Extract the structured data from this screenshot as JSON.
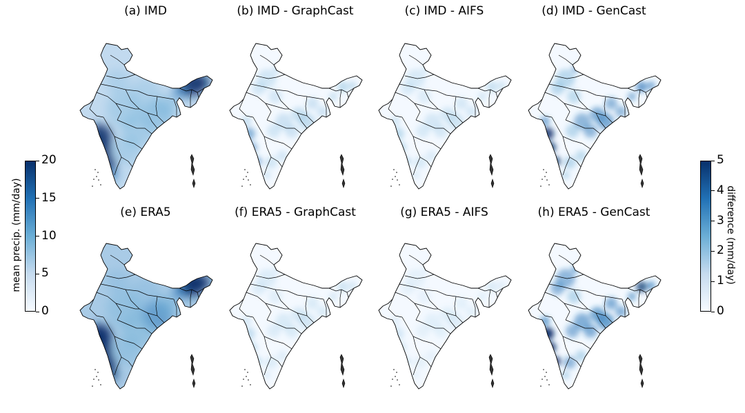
{
  "panels": [
    {
      "label": "(a) IMD",
      "kind": "mean",
      "source": "IMD"
    },
    {
      "label": "(b) IMD - GraphCast",
      "kind": "diff",
      "intensity": 0.45
    },
    {
      "label": "(c) IMD - AIFS",
      "kind": "diff",
      "intensity": 0.35
    },
    {
      "label": "(d) IMD - GenCast",
      "kind": "diff",
      "intensity": 0.75
    },
    {
      "label": "(e) ERA5",
      "kind": "mean",
      "source": "ERA5"
    },
    {
      "label": "(f) ERA5 - GraphCast",
      "kind": "diff",
      "intensity": 0.3
    },
    {
      "label": "(g) ERA5 - AIFS",
      "kind": "diff",
      "intensity": 0.2
    },
    {
      "label": "(h) ERA5 - GenCast",
      "kind": "diff",
      "intensity": 0.85
    }
  ],
  "colorbar_left": {
    "label": "mean precip. (mm/day)",
    "min": 0,
    "max": 20,
    "ticks": [
      "0",
      "5",
      "10",
      "15",
      "20"
    ],
    "colormap": [
      "#f7fbff",
      "#c6dbef",
      "#6baed6",
      "#2171b5",
      "#08306b"
    ]
  },
  "colorbar_right": {
    "label": "difference (mm/day)",
    "min": 0,
    "max": 5,
    "ticks": [
      "0",
      "1",
      "2",
      "3",
      "4",
      "5"
    ],
    "colormap": [
      "#f7fbff",
      "#c6dbef",
      "#6baed6",
      "#2171b5",
      "#08306b"
    ]
  }
}
